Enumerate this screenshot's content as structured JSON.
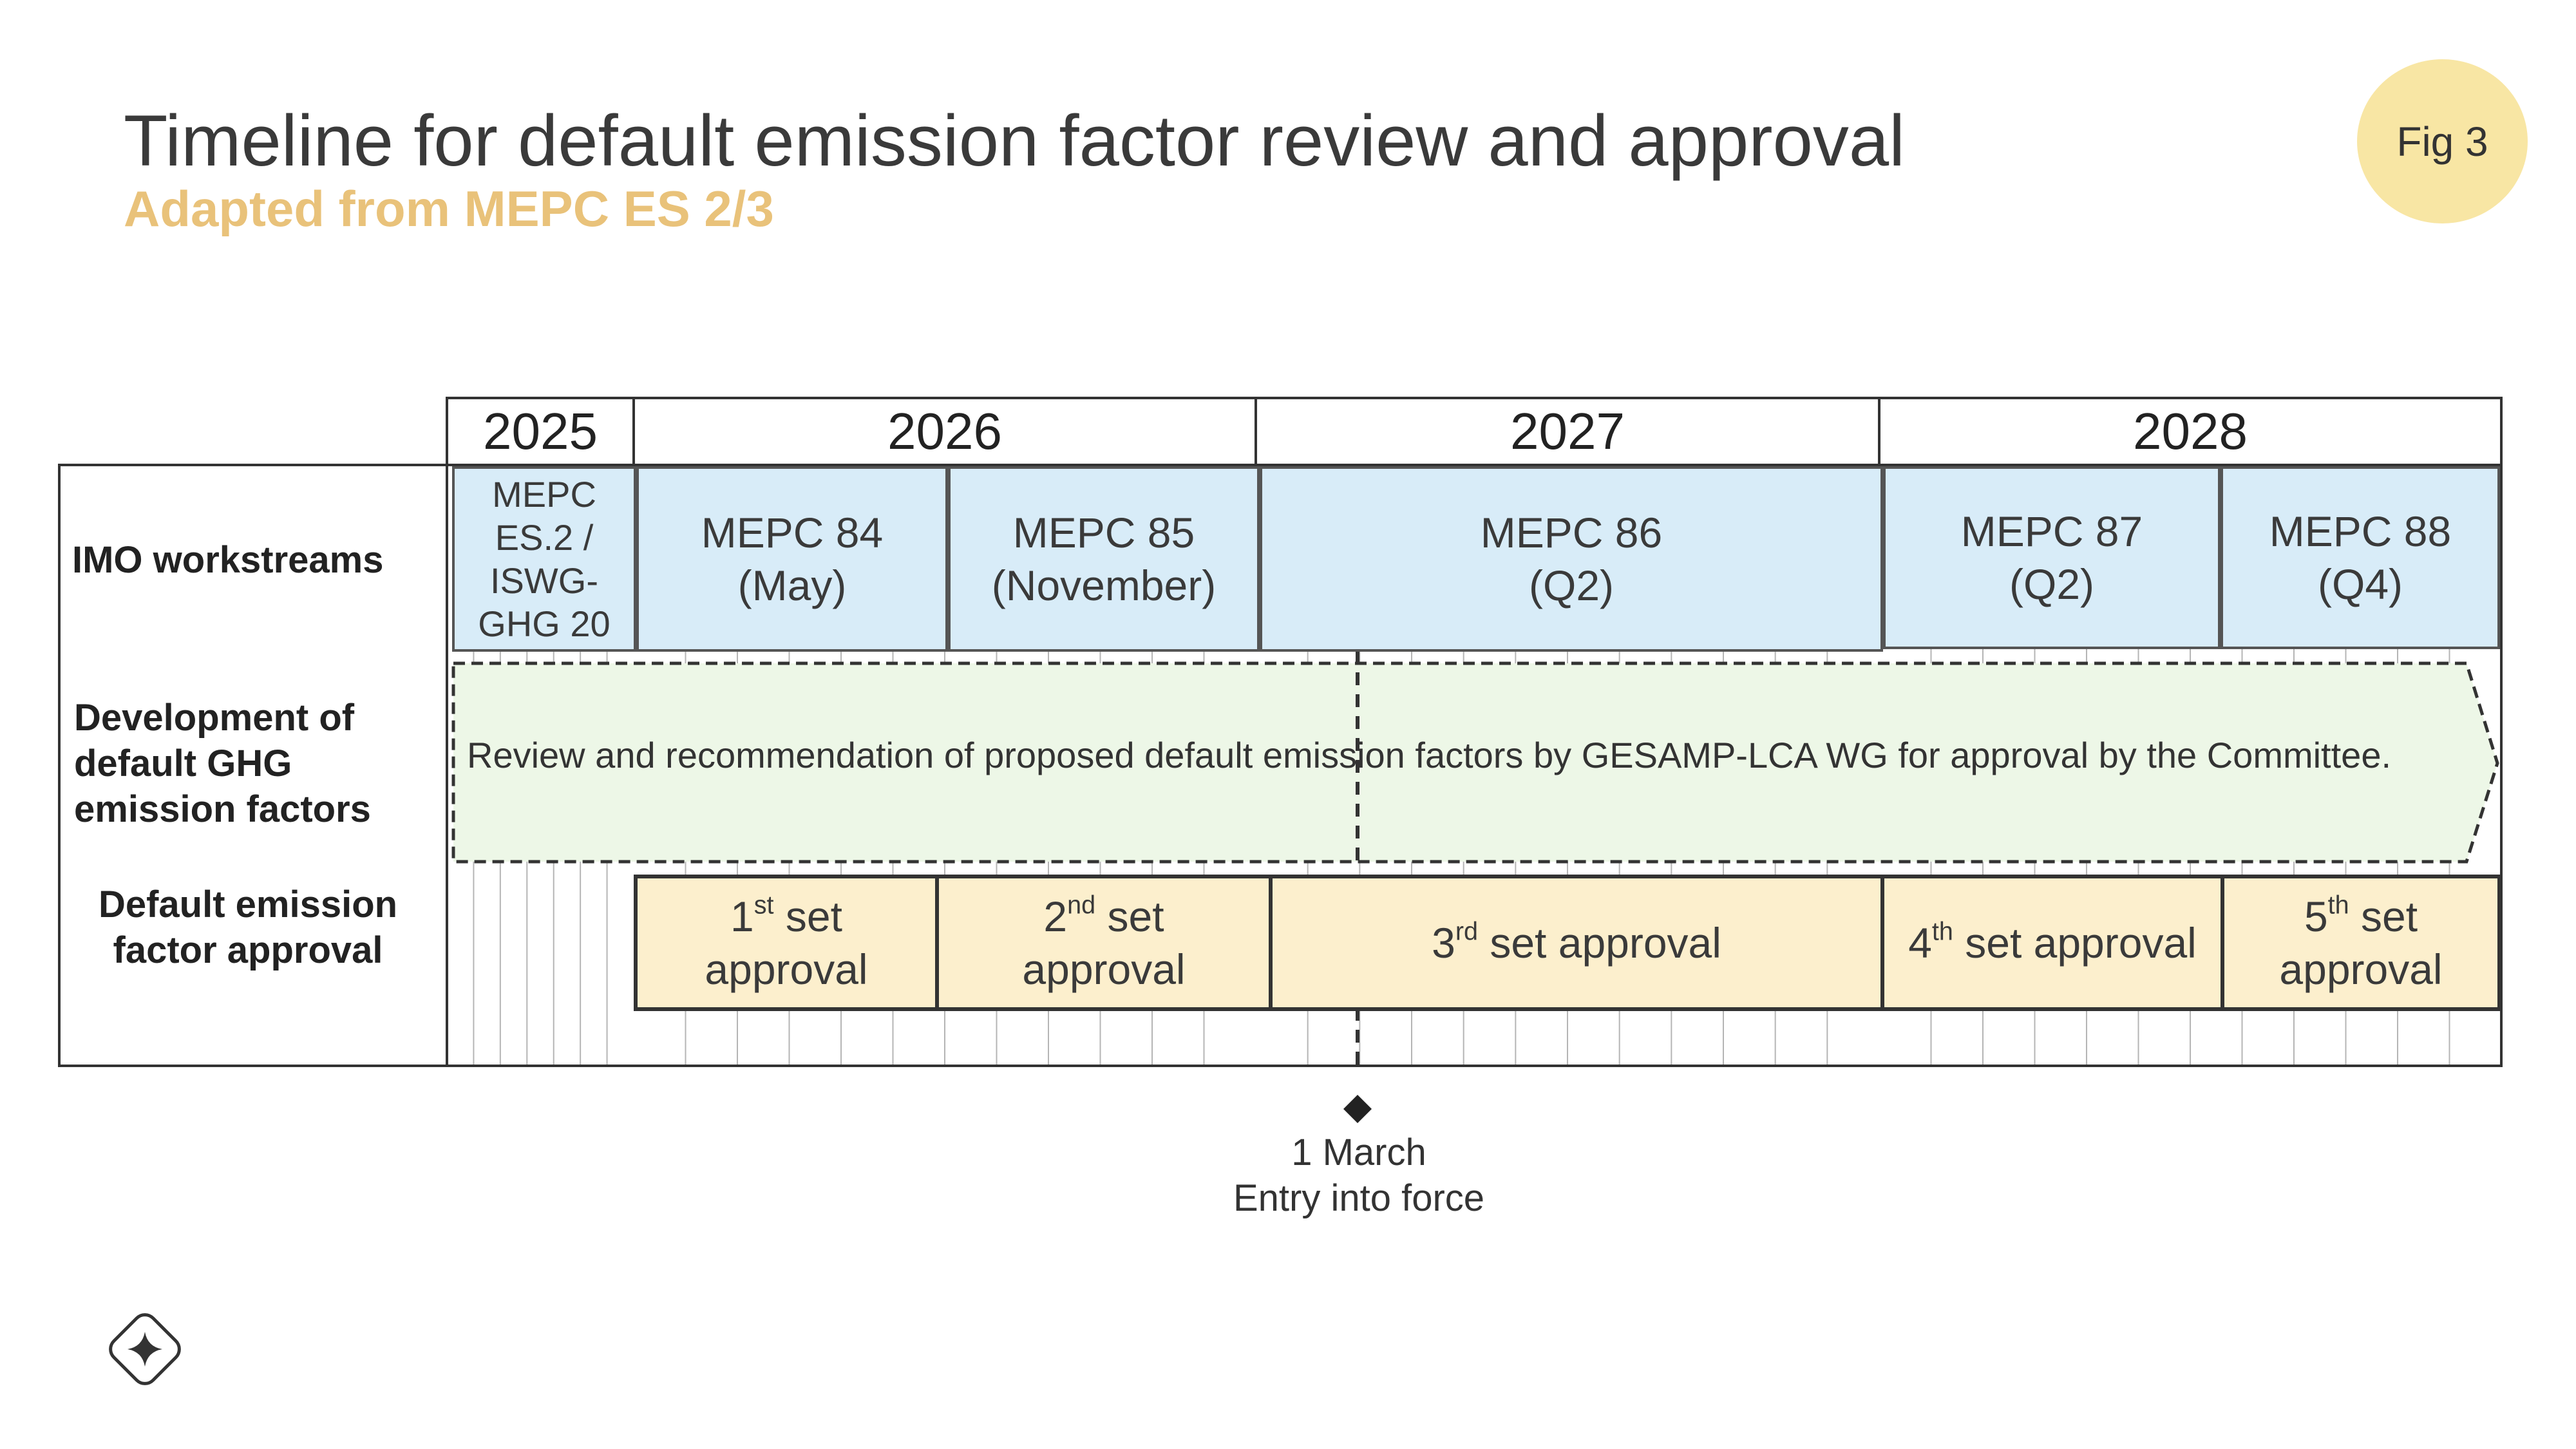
{
  "title": "Timeline for default emission factor review and approval",
  "subtitle": "Adapted from MEPC ES 2/3",
  "fig_label": "Fig 3",
  "years": [
    "2025",
    "2026",
    "2027",
    "2028"
  ],
  "row_labels": {
    "imo": "IMO workstreams",
    "development": "Development of default GHG emission factors",
    "approval": "Default emission factor approval"
  },
  "imo_workstreams": [
    {
      "line1": "MEPC",
      "line2": "ES.2 /",
      "line3": "ISWG-",
      "line4": "GHG 20"
    },
    {
      "line1": "MEPC 84",
      "line2": "(May)"
    },
    {
      "line1": "MEPC 85",
      "line2": "(November)"
    },
    {
      "line1": "MEPC 86",
      "line2": "(Q2)"
    },
    {
      "line1": "MEPC 87",
      "line2": "(Q2)"
    },
    {
      "line1": "MEPC 88",
      "line2": "(Q4)"
    }
  ],
  "development_text": "Review and recommendation of proposed default emission factors by GESAMP-LCA WG for approval by the Committee.",
  "approvals": [
    {
      "num": "1",
      "sup": "st",
      "rest": " set",
      "line2": "approval"
    },
    {
      "num": "2",
      "sup": "nd",
      "rest": " set",
      "line2": "approval"
    },
    {
      "num": "3",
      "sup": "rd",
      "rest": " set approval",
      "line2": ""
    },
    {
      "num": "4",
      "sup": "th",
      "rest": " set approval",
      "line2": ""
    },
    {
      "num": "5",
      "sup": "th",
      "rest": " set",
      "line2": "approval"
    }
  ],
  "milestone": {
    "date": "1 March",
    "label": "Entry into force"
  },
  "colors": {
    "accent": "#e9c27a",
    "badge": "#f8e6a4",
    "workstream_fill": "#d8ecf8",
    "arrow_fill": "#edf7e7",
    "approval_fill": "#fcefcd"
  }
}
